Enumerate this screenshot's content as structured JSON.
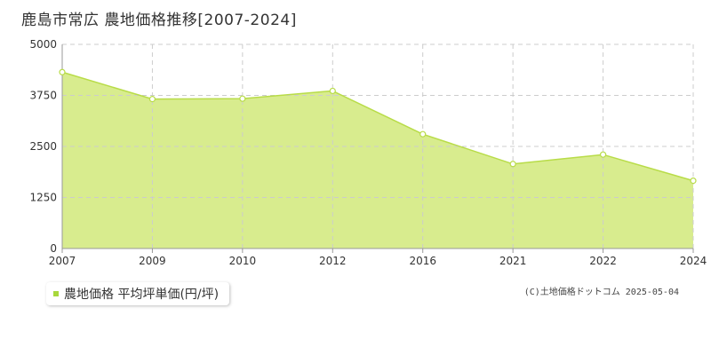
{
  "title": "鹿島市常広 農地価格推移[2007-2024]",
  "legend_label": "農地価格 平均坪単価(円/坪)",
  "credit": "(C)土地価格ドットコム 2025-05-04",
  "colors": {
    "line": "#b8dc48",
    "fill": "#d8ec8e",
    "grid": "#cccccc",
    "axis": "#999999"
  },
  "chart_data": {
    "type": "area",
    "title": "鹿島市常広 農地価格推移[2007-2024]",
    "xlabel": "",
    "ylabel": "",
    "categories": [
      "2007",
      "2009",
      "2010",
      "2012",
      "2016",
      "2021",
      "2022",
      "2024"
    ],
    "series": [
      {
        "name": "農地価格 平均坪単価(円/坪)",
        "values": [
          4320,
          3660,
          3670,
          3860,
          2800,
          2070,
          2300,
          1660
        ]
      }
    ],
    "yticks": [
      0,
      1250,
      2500,
      3750,
      5000
    ],
    "ylim": [
      0,
      5000
    ],
    "grid": true,
    "legend_position": "bottom-left"
  }
}
